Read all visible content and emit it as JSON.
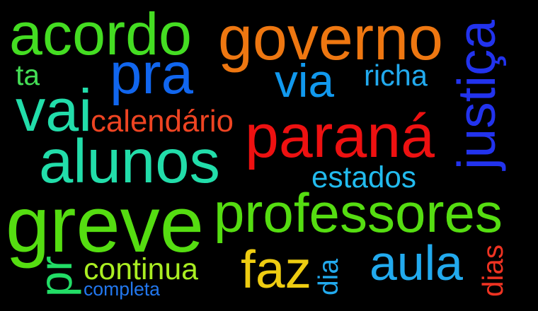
{
  "words": [
    {
      "text": "greve",
      "color": "#55dd11"
    },
    {
      "text": "professores",
      "color": "#55dd11"
    },
    {
      "text": "paraná",
      "color": "#ee1111"
    },
    {
      "text": "governo",
      "color": "#ee7711"
    },
    {
      "text": "acordo",
      "color": "#44dd22"
    },
    {
      "text": "alunos",
      "color": "#22ddaa"
    },
    {
      "text": "vai",
      "color": "#22ddaa"
    },
    {
      "text": "pra",
      "color": "#1166ee"
    },
    {
      "text": "justiça",
      "color": "#2233ee"
    },
    {
      "text": "faz",
      "color": "#eecc11"
    },
    {
      "text": "aula",
      "color": "#22aaee"
    },
    {
      "text": "via",
      "color": "#1199ee"
    },
    {
      "text": "pr",
      "color": "#22dd66"
    },
    {
      "text": "calendário",
      "color": "#ee4422"
    },
    {
      "text": "continua",
      "color": "#aaee22"
    },
    {
      "text": "estados",
      "color": "#22bbee"
    },
    {
      "text": "richa",
      "color": "#22aaee"
    },
    {
      "text": "dia",
      "color": "#22aaee"
    },
    {
      "text": "dias",
      "color": "#ee3322"
    },
    {
      "text": "ta",
      "color": "#44dd55"
    },
    {
      "text": "completa",
      "color": "#2277ee"
    }
  ]
}
